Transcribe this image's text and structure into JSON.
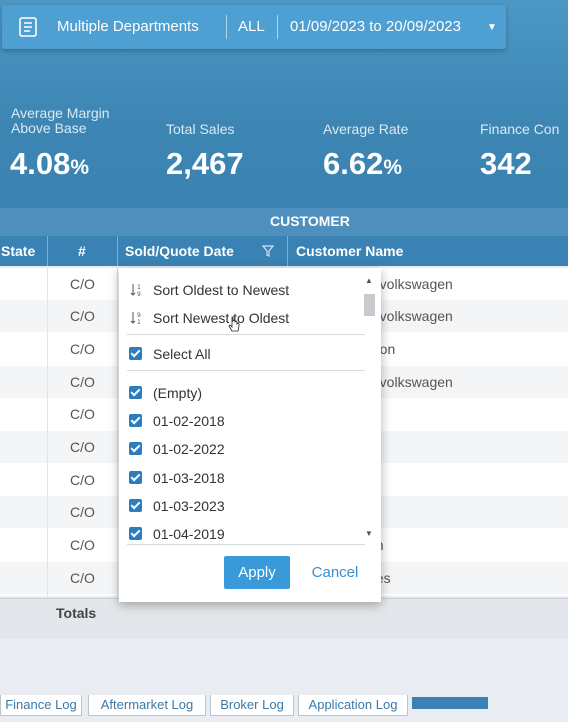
{
  "filter_bar": {
    "departments": "Multiple Departments",
    "scope": "ALL",
    "date_range": "01/09/2023 to 20/09/2023",
    "icon": "document-icon"
  },
  "kpis": [
    {
      "label_line1": "Average Margin",
      "label_line2": "Above Base",
      "value": "4.08",
      "unit": "%"
    },
    {
      "label_line1": "Total Sales",
      "label_line2": "",
      "value": "2,467",
      "unit": ""
    },
    {
      "label_line1": "Average Rate",
      "label_line2": "",
      "value": "6.62",
      "unit": "%"
    },
    {
      "label_line1": "Finance Con",
      "label_line2": "",
      "value": "342",
      "unit": ""
    }
  ],
  "group_header": "CUSTOMER",
  "columns": {
    "state": "State",
    "number": "#",
    "sold_quote_date": "Sold/Quote Date",
    "customer_name": "Customer Name"
  },
  "rows": [
    {
      "number": "C/O",
      "customer_name": "n volkswagen"
    },
    {
      "number": "C/O",
      "customer_name": "n volkswagen"
    },
    {
      "number": "C/O",
      "customer_name": "nton"
    },
    {
      "number": "C/O",
      "customer_name": "n volkswagen"
    },
    {
      "number": "C/O",
      "customer_name": ""
    },
    {
      "number": "C/O",
      "customer_name": ""
    },
    {
      "number": "C/O",
      "customer_name": "y"
    },
    {
      "number": "C/O",
      "customer_name": ""
    },
    {
      "number": "C/O",
      "customer_name": "on"
    },
    {
      "number": "C/O",
      "customer_name": "nes"
    }
  ],
  "totals_label": "Totals",
  "dropdown": {
    "sort_asc": "Sort Oldest to Newest",
    "sort_desc": "Sort Newest to Oldest",
    "select_all": "Select All",
    "values": [
      "(Empty)",
      "01-02-2018",
      "01-02-2022",
      "01-03-2018",
      "01-03-2023",
      "01-04-2019"
    ],
    "apply": "Apply",
    "cancel": "Cancel"
  },
  "tabs": [
    "Finance Log",
    "Aftermarket Log",
    "Broker Log",
    "Application Log"
  ],
  "colors": {
    "header": "#3d86b4",
    "accent": "#3a9ad9",
    "checkbox": "#2c7cc1"
  }
}
